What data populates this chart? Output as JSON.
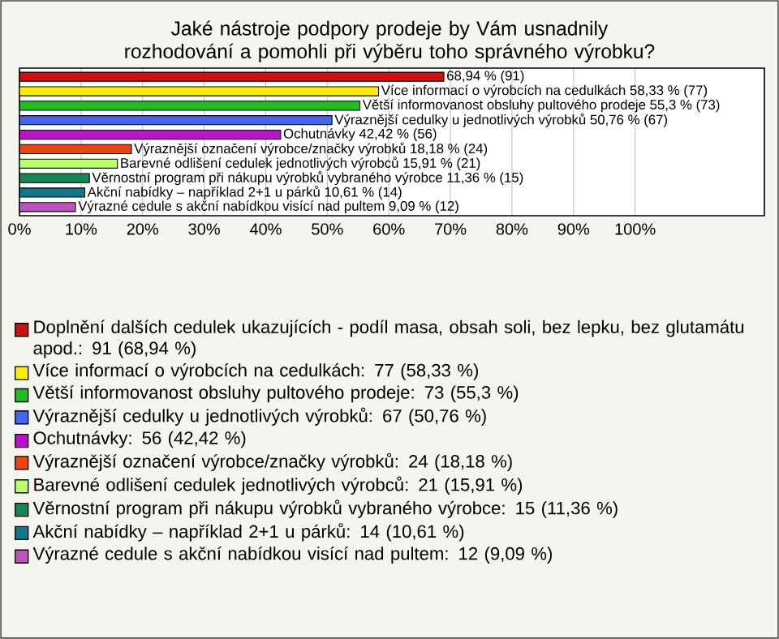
{
  "chart_data": {
    "type": "bar",
    "orientation": "horizontal",
    "title": "Jaké nástroje podpory prodeje by Vám usnadnily rozhodování a pomohli při výběru toho správného výrobku?",
    "categories": [
      null,
      null,
      null,
      null,
      null,
      null,
      null,
      null,
      null,
      null
    ],
    "series": [
      {
        "name": "Doplnění dalších cedulek ukazujících - podíl masa, obsah soli, bez lepku, bez glutamátu apod.: 91 (68,94 %)",
        "color": "#cc1111",
        "values": [
          68.94,
          null,
          null,
          null,
          null,
          null,
          null,
          null,
          null,
          null
        ],
        "value_labels": [
          "68,94 % (91)",
          null,
          null,
          null,
          null,
          null,
          null,
          null,
          null,
          null
        ]
      },
      {
        "name": "Více informací o výrobcích na cedulkách: 77 (58,33 %)",
        "color": "#ffee00",
        "values": [
          null,
          58.33,
          null,
          null,
          null,
          null,
          null,
          null,
          null,
          null
        ],
        "value_labels": [
          null,
          "Více informací o výrobcích na cedulkách 58,33 % (77)",
          null,
          null,
          null,
          null,
          null,
          null,
          null,
          null
        ]
      },
      {
        "name": "Větší informovanost obsluhy pultového prodeje: 73 (55,3 %)",
        "color": "#22bb22",
        "values": [
          null,
          null,
          55.3,
          null,
          null,
          null,
          null,
          null,
          null,
          null
        ],
        "value_labels": [
          null,
          null,
          "Větší informovanost obsluhy pultového prodeje 55,3 % (73)",
          null,
          null,
          null,
          null,
          null,
          null,
          null
        ]
      },
      {
        "name": "Výraznější cedulky u jednotlivých výrobků: 67 (50,76 %)",
        "color": "#4466ee",
        "values": [
          null,
          null,
          null,
          50.76,
          null,
          null,
          null,
          null,
          null,
          null
        ],
        "value_labels": [
          null,
          null,
          null,
          "Výraznější cedulky u jednotlivých výrobků 50,76 % (67)",
          null,
          null,
          null,
          null,
          null,
          null
        ]
      },
      {
        "name": "Ochutnávky: 56 (42,42 %)",
        "color": "#bb11cc",
        "values": [
          null,
          null,
          null,
          null,
          42.42,
          null,
          null,
          null,
          null,
          null
        ],
        "value_labels": [
          null,
          null,
          null,
          null,
          "Ochutnávky 42,42 % (56)",
          null,
          null,
          null,
          null,
          null
        ]
      },
      {
        "name": "Výraznější označení výrobce/značky výrobků: 24 (18,18 %)",
        "color": "#ee4411",
        "values": [
          null,
          null,
          null,
          null,
          null,
          18.18,
          null,
          null,
          null,
          null
        ],
        "value_labels": [
          null,
          null,
          null,
          null,
          null,
          "Výraznější označení výrobce/značky výrobků 18,18 % (24)",
          null,
          null,
          null,
          null
        ]
      },
      {
        "name": "Barevné odlišení cedulek jednotlivých výrobců: 21 (15,91 %)",
        "color": "#bbff66",
        "values": [
          null,
          null,
          null,
          null,
          null,
          null,
          15.91,
          null,
          null,
          null
        ],
        "value_labels": [
          null,
          null,
          null,
          null,
          null,
          null,
          "Barevné odlišení cedulek jednotlivých výrobců 15,91 % (21)",
          null,
          null,
          null
        ]
      },
      {
        "name": "Věrnostní program při nákupu výrobků vybraného výrobce: 15 (11,36 %)",
        "color": "#118855",
        "values": [
          null,
          null,
          null,
          null,
          null,
          null,
          null,
          11.36,
          null,
          null
        ],
        "value_labels": [
          null,
          null,
          null,
          null,
          null,
          null,
          null,
          "Věrnostní program při nákupu výrobků vybraného výrobce 11,36 % (15)",
          null,
          null
        ]
      },
      {
        "name": "Akční nabídky – například 2+1 u párků: 14 (10,61 %)",
        "color": "#117788",
        "values": [
          null,
          null,
          null,
          null,
          null,
          null,
          null,
          null,
          10.61,
          null
        ],
        "value_labels": [
          null,
          null,
          null,
          null,
          null,
          null,
          null,
          null,
          "Akční nabídky – například 2+1 u párků 10,61 % (14)",
          null
        ]
      },
      {
        "name": "Výrazné cedule s akční nabídkou visící nad pultem: 12 (9,09 %)",
        "color": "#bb55bb",
        "values": [
          null,
          null,
          null,
          null,
          null,
          null,
          null,
          null,
          null,
          9.09
        ],
        "value_labels": [
          null,
          null,
          null,
          null,
          null,
          null,
          null,
          null,
          null,
          "Výrazné cedule s akční nabídkou visící nad pultem 9,09 % (12)"
        ]
      }
    ],
    "xlim": [
      0,
      121
    ],
    "xticks": [
      {
        "value": 0,
        "label": "0%"
      },
      {
        "value": 10,
        "label": "10%"
      },
      {
        "value": 20,
        "label": "20%"
      },
      {
        "value": 30,
        "label": "30%"
      },
      {
        "value": 40,
        "label": "40%"
      },
      {
        "value": 50,
        "label": "50%"
      },
      {
        "value": 60,
        "label": "60%"
      },
      {
        "value": 70,
        "label": "70%"
      },
      {
        "value": 80,
        "label": "80%"
      },
      {
        "value": 90,
        "label": "90%"
      },
      {
        "value": 100,
        "label": "100%"
      }
    ],
    "tick_labels": "x",
    "grid": "x",
    "legend": "bottom"
  }
}
